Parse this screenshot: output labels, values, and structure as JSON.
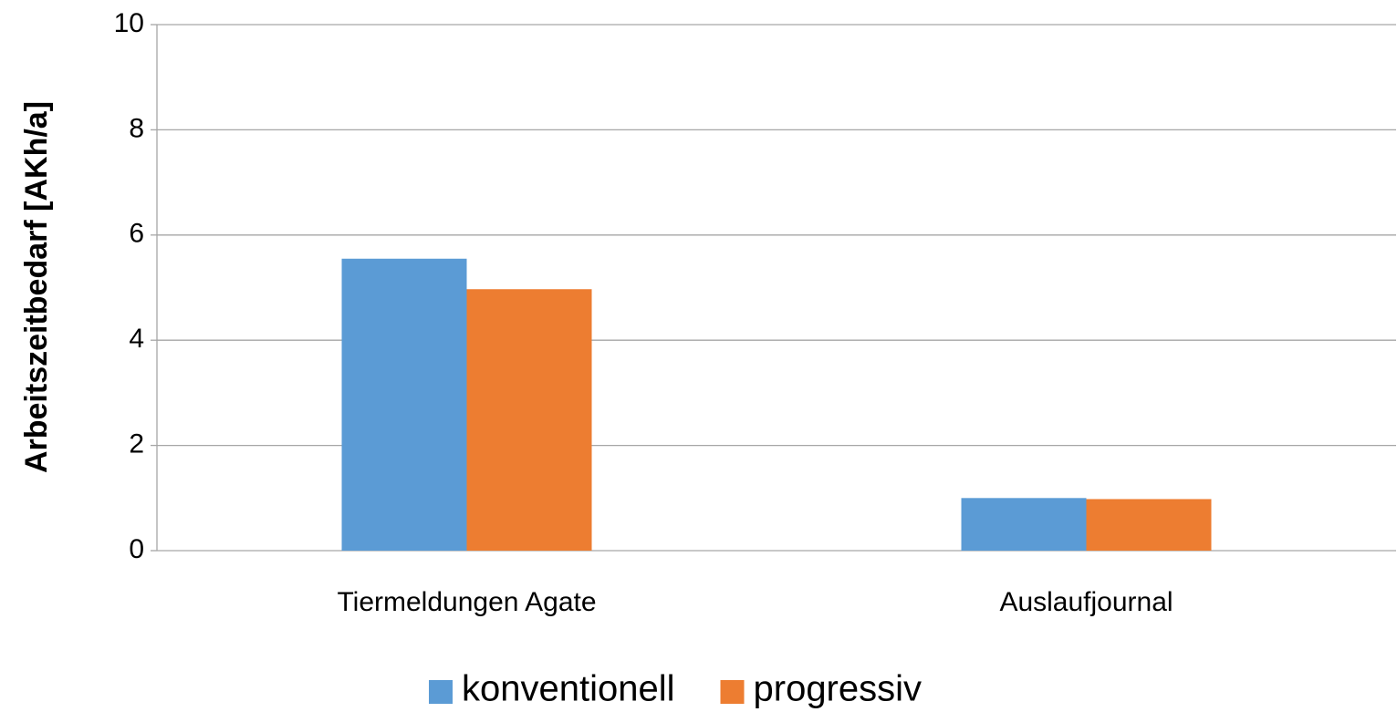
{
  "chart_data": {
    "type": "bar",
    "y_label": "Arbeitszeitbedarf [AKh/a]",
    "categories": [
      "Tiermeldungen Agate",
      "Auslaufjournal"
    ],
    "series": [
      {
        "name": "konventionell",
        "color": "#5b9bd5",
        "values": [
          5.55,
          1.0
        ]
      },
      {
        "name": "progressiv",
        "color": "#ed7d31",
        "values": [
          4.97,
          0.98
        ]
      }
    ],
    "ylim": [
      0,
      10
    ],
    "yticks": [
      0,
      2,
      4,
      6,
      8,
      10
    ],
    "grid": true,
    "legend": "bottom"
  }
}
